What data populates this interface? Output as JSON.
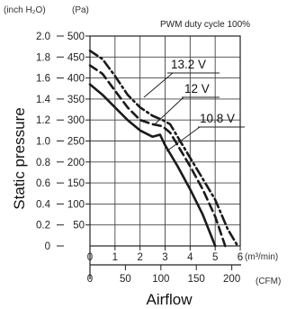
{
  "chart_data": {
    "type": "line",
    "annotation": "PWM duty cycle 100%",
    "ylabel": "Static pressure",
    "xlabel": "Airflow",
    "y_unit_left": "(inch H₂O)",
    "y_unit_right": "(Pa)",
    "x_unit_top": "(m³/min)",
    "x_unit_bottom": "(CFM)",
    "y_ticks_inch": [
      "2.0",
      "1.8",
      "1.6",
      "1.4",
      "1.2",
      "1.0",
      "0.8",
      "0.6",
      "0.4",
      "0.2",
      "0"
    ],
    "y_ticks_pa": [
      "500",
      "450",
      "400",
      "350",
      "300",
      "250",
      "200",
      "150",
      "100",
      "50"
    ],
    "x_ticks_m3": [
      "0",
      "1",
      "2",
      "3",
      "4",
      "5",
      "6"
    ],
    "x_ticks_cfm": [
      "0",
      "50",
      "100",
      "150",
      "200"
    ],
    "xlim": [
      0,
      6
    ],
    "ylim": [
      0,
      500
    ],
    "grid": true,
    "series": [
      {
        "name": "13.2 V",
        "style": "dash-dot",
        "x": [
          0,
          0.5,
          1.0,
          1.5,
          2.0,
          2.5,
          2.9,
          3.2,
          3.6,
          4.0,
          4.5,
          5.0,
          5.5,
          5.9
        ],
        "y": [
          465,
          445,
          405,
          360,
          330,
          310,
          300,
          290,
          250,
          210,
          160,
          110,
          40,
          0
        ]
      },
      {
        "name": "12 V",
        "style": "dashed",
        "x": [
          0,
          0.5,
          1.0,
          1.5,
          2.0,
          2.5,
          2.9,
          3.2,
          3.6,
          4.0,
          4.5,
          5.0,
          5.4
        ],
        "y": [
          430,
          410,
          370,
          330,
          300,
          290,
          285,
          270,
          230,
          190,
          135,
          70,
          0
        ]
      },
      {
        "name": "10.8 V",
        "style": "solid",
        "x": [
          0,
          0.5,
          1.0,
          1.5,
          2.0,
          2.5,
          2.8,
          3.0,
          3.5,
          4.0,
          4.5,
          5.0
        ],
        "y": [
          385,
          360,
          330,
          300,
          275,
          260,
          265,
          240,
          190,
          135,
          75,
          0
        ]
      }
    ]
  }
}
